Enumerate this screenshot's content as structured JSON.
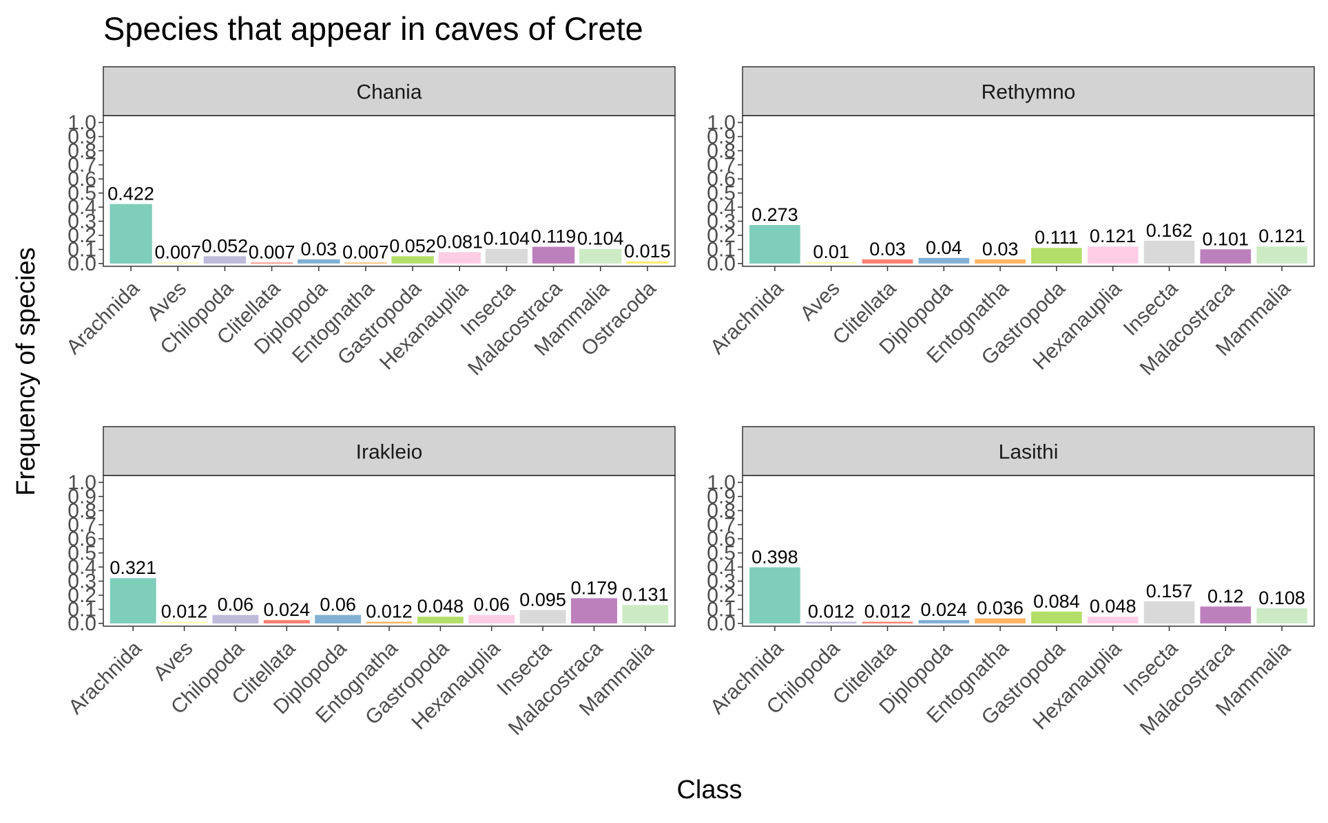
{
  "chart_data": {
    "type": "bar",
    "title": "Species that appear in caves of Crete",
    "xlabel": "Class",
    "ylabel": "Frequency of species",
    "ylim": [
      0,
      1.0
    ],
    "yticks": [
      "0.0",
      "0.1",
      "0.2",
      "0.3",
      "0.4",
      "0.5",
      "0.6",
      "0.7",
      "0.8",
      "0.9",
      "1.0"
    ],
    "grid": false,
    "legend": "none",
    "class_colors": {
      "Arachnida": "#7fcdbb",
      "Aves": "#ffffb3",
      "Chilopoda": "#bebada",
      "Clitellata": "#fb8072",
      "Diplopoda": "#80b1d3",
      "Entognatha": "#fdb462",
      "Gastropoda": "#b3de69",
      "Hexanauplia": "#fccde5",
      "Insecta": "#d9d9d9",
      "Malacostraca": "#bc80bd",
      "Mammalia": "#ccebc5",
      "Ostracoda": "#ffed6f"
    },
    "panels": [
      {
        "name": "Chania",
        "categories": [
          "Arachnida",
          "Aves",
          "Chilopoda",
          "Clitellata",
          "Diplopoda",
          "Entognatha",
          "Gastropoda",
          "Hexanauplia",
          "Insecta",
          "Malacostraca",
          "Mammalia",
          "Ostracoda"
        ],
        "values": [
          0.422,
          0.007,
          0.052,
          0.007,
          0.03,
          0.007,
          0.052,
          0.081,
          0.104,
          0.119,
          0.104,
          0.015
        ]
      },
      {
        "name": "Rethymno",
        "categories": [
          "Arachnida",
          "Aves",
          "Clitellata",
          "Diplopoda",
          "Entognatha",
          "Gastropoda",
          "Hexanauplia",
          "Insecta",
          "Malacostraca",
          "Mammalia"
        ],
        "values": [
          0.273,
          0.01,
          0.03,
          0.04,
          0.03,
          0.111,
          0.121,
          0.162,
          0.101,
          0.121
        ]
      },
      {
        "name": "Irakleio",
        "categories": [
          "Arachnida",
          "Aves",
          "Chilopoda",
          "Clitellata",
          "Diplopoda",
          "Entognatha",
          "Gastropoda",
          "Hexanauplia",
          "Insecta",
          "Malacostraca",
          "Mammalia"
        ],
        "values": [
          0.321,
          0.012,
          0.06,
          0.024,
          0.06,
          0.012,
          0.048,
          0.06,
          0.095,
          0.179,
          0.131
        ]
      },
      {
        "name": "Lasithi",
        "categories": [
          "Arachnida",
          "Chilopoda",
          "Clitellata",
          "Diplopoda",
          "Entognatha",
          "Gastropoda",
          "Hexanauplia",
          "Insecta",
          "Malacostraca",
          "Mammalia"
        ],
        "values": [
          0.398,
          0.012,
          0.012,
          0.024,
          0.036,
          0.084,
          0.048,
          0.157,
          0.12,
          0.108
        ]
      }
    ]
  }
}
